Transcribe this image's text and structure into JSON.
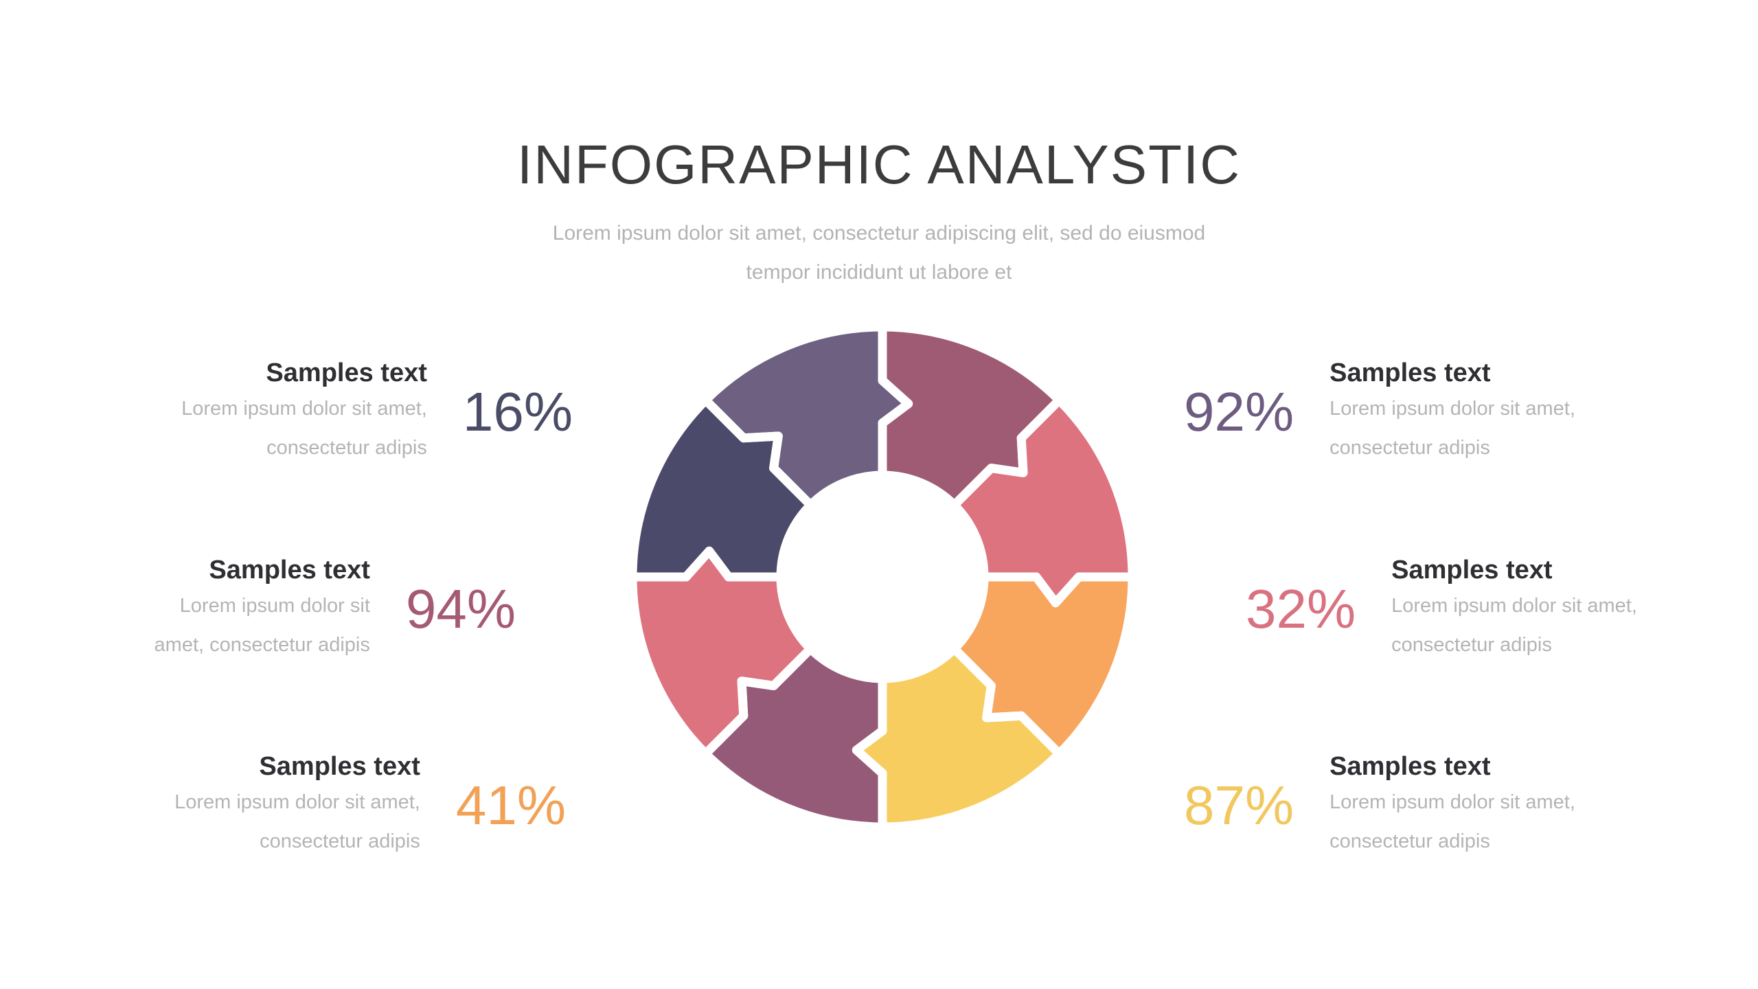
{
  "header": {
    "title": "INFOGRAPHIC ANALYSTIC",
    "subtitle_line1": "Lorem ipsum dolor sit amet, consectetur adipiscing elit, sed do eiusmod",
    "subtitle_line2": "tempor incididunt ut labore et"
  },
  "stats": [
    {
      "percent": "16%",
      "color": "#4a4c68",
      "heading": "Samples text",
      "lines": [
        "Lorem ipsum dolor sit amet,",
        "consectetur adipis"
      ]
    },
    {
      "percent": "94%",
      "color": "#a55a73",
      "heading": "Samples text",
      "lines": [
        "Lorem ipsum dolor sit",
        "amet, consectetur adipis"
      ]
    },
    {
      "percent": "41%",
      "color": "#f2a156",
      "heading": "Samples text",
      "lines": [
        "Lorem ipsum dolor sit amet,",
        "consectetur adipis"
      ]
    },
    {
      "percent": "92%",
      "color": "#6d5c80",
      "heading": "Samples text",
      "lines": [
        "Lorem ipsum dolor sit amet,",
        "consectetur adipis"
      ]
    },
    {
      "percent": "32%",
      "color": "#d87180",
      "heading": "Samples text",
      "lines": [
        "Lorem ipsum dolor sit amet,",
        "consectetur adipis"
      ]
    },
    {
      "percent": "87%",
      "color": "#f2c75e",
      "heading": "Samples text",
      "lines": [
        "Lorem ipsum dolor sit amet,",
        "consectetur adipis"
      ]
    }
  ],
  "chart": {
    "type": "puzzle-donut",
    "description": "Circular ring of 8 equal 45-degree jigsaw-puzzle pieces with white gaps; each piece has an arrow tab into the next piece (clockwise) and a notch on its other edge",
    "segments": [
      {
        "position": "12:00-1:30",
        "color": "#9f5b74"
      },
      {
        "position": "1:30-3:00",
        "color": "#de7380"
      },
      {
        "position": "3:00-4:30",
        "color": "#f8a55d"
      },
      {
        "position": "4:30-6:00",
        "color": "#f8cd5f"
      },
      {
        "position": "6:00-7:30",
        "color": "#965a79"
      },
      {
        "position": "7:30-9:00",
        "color": "#de7380"
      },
      {
        "position": "9:00-10:30",
        "color": "#4b4a6a"
      },
      {
        "position": "10:30-12:00",
        "color": "#6d6081"
      }
    ],
    "inner_radius_ratio": 0.41,
    "gap_color": "#ffffff"
  },
  "colors": {
    "background": "#ffffff",
    "title_text": "#3c3c3c",
    "muted_text": "#b4b4b4",
    "heading_text": "#2e2e33"
  }
}
